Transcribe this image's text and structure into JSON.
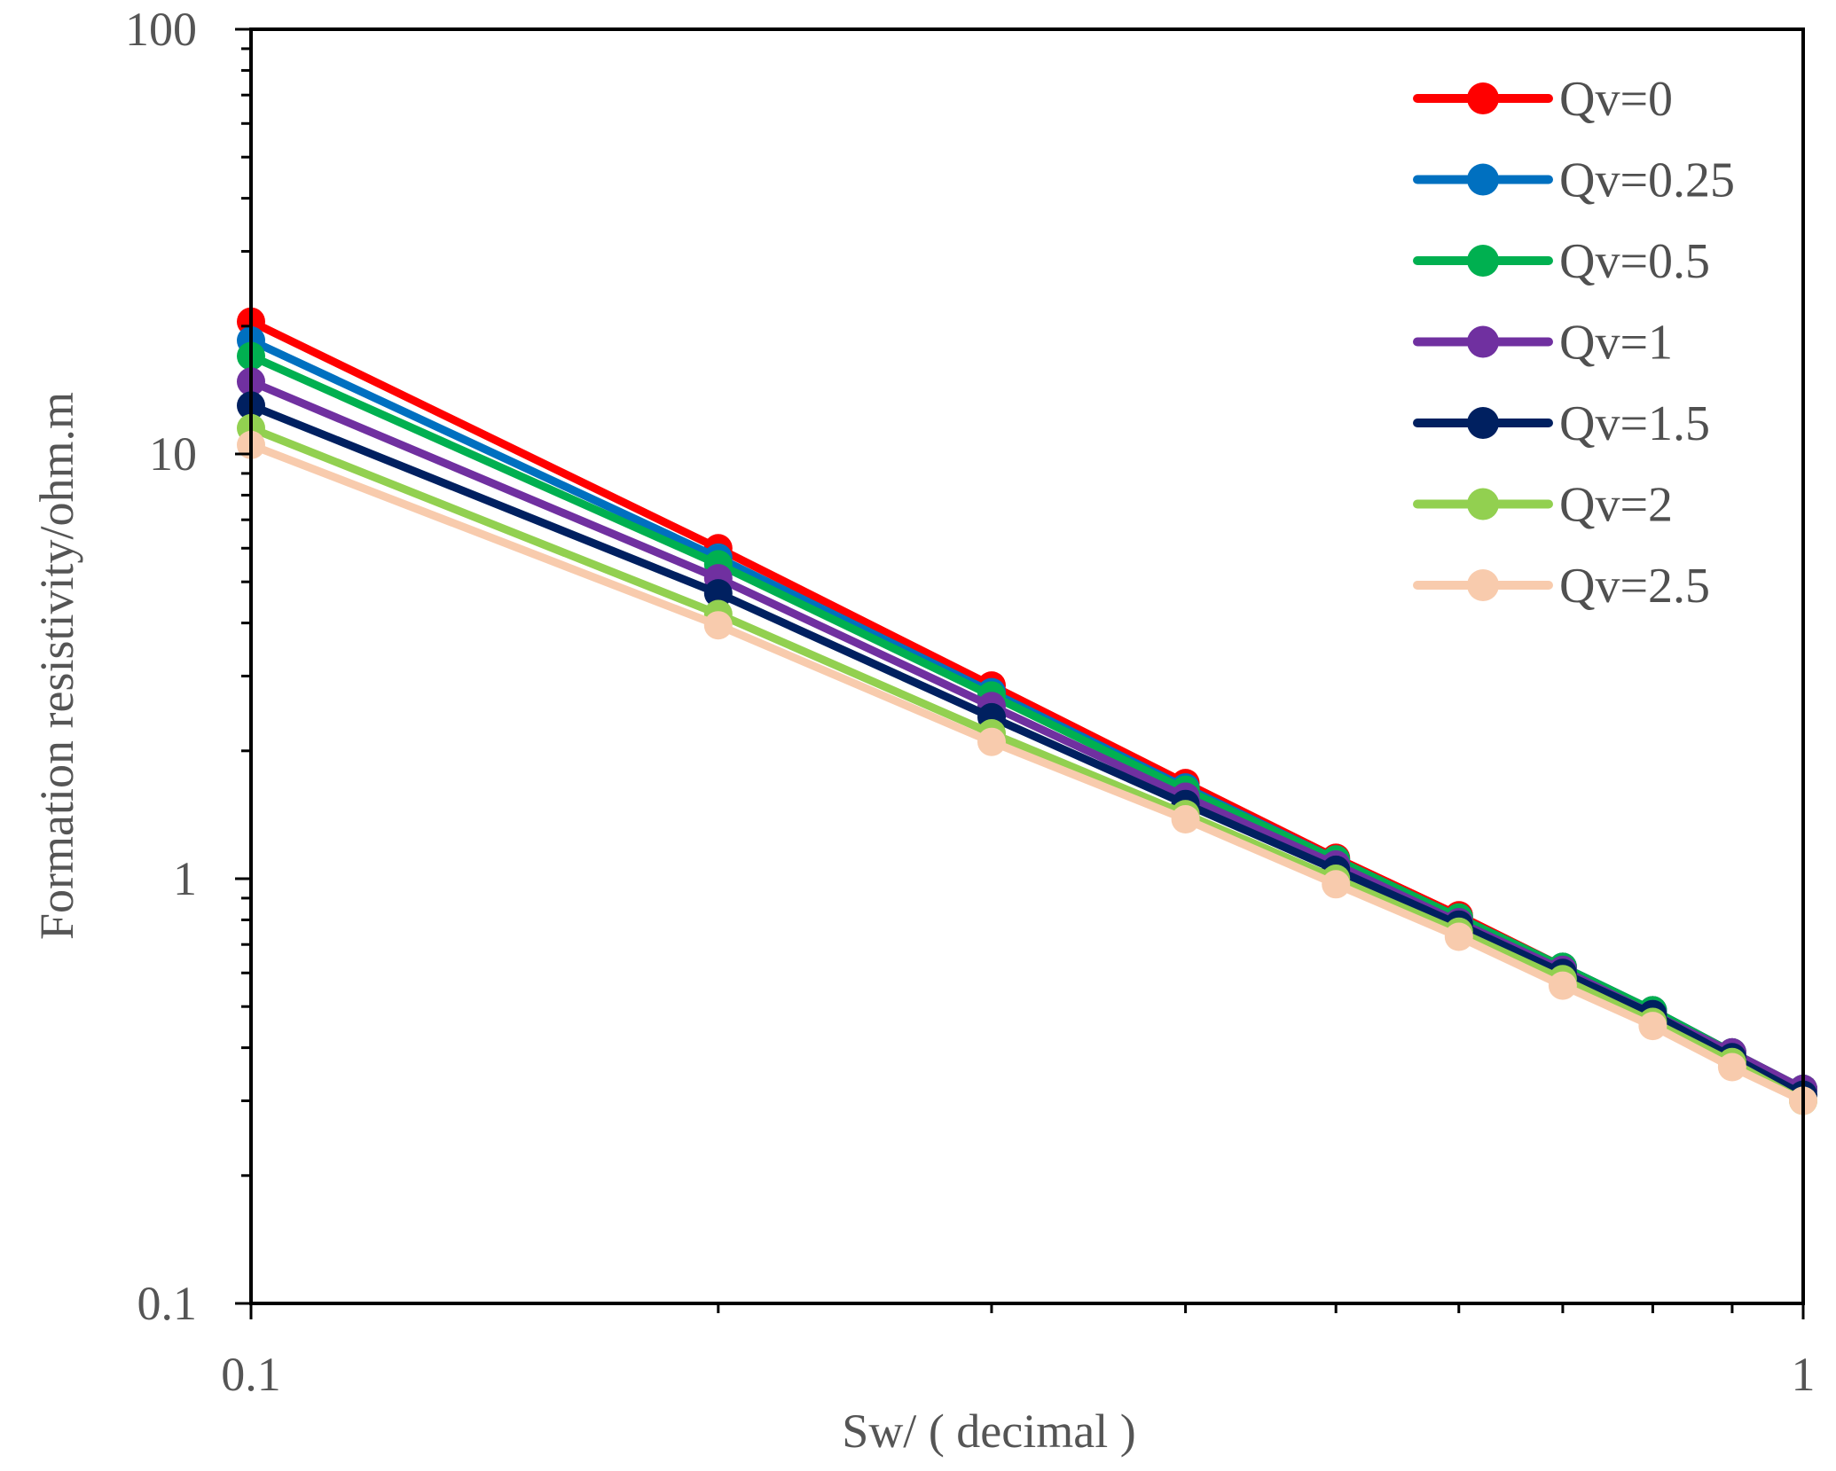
{
  "chart_data": {
    "type": "line",
    "title": "",
    "xlabel": "Sw/ ( decimal )",
    "ylabel": "Formation resistivity/ohm.m",
    "xscale": "log",
    "yscale": "log",
    "xlim": [
      0.1,
      1
    ],
    "ylim": [
      0.1,
      100
    ],
    "x_tick_labels": [
      "0.1",
      "1"
    ],
    "y_tick_labels": [
      "0.1",
      "1",
      "10",
      "100"
    ],
    "grid": false,
    "legend_position": "top-right",
    "x": [
      0.1,
      0.2,
      0.3,
      0.4,
      0.5,
      0.6,
      0.7,
      0.8,
      0.9,
      1.0
    ],
    "series": [
      {
        "name": "Qv=0",
        "color": "#ff0000",
        "values": [
          20.5,
          6.0,
          2.85,
          1.68,
          1.12,
          0.82,
          0.62,
          0.49,
          0.39,
          0.32
        ]
      },
      {
        "name": "Qv=0.25",
        "color": "#0070c0",
        "values": [
          18.5,
          5.7,
          2.75,
          1.64,
          1.11,
          0.81,
          0.62,
          0.49,
          0.39,
          0.32
        ]
      },
      {
        "name": "Qv=0.5",
        "color": "#00b050",
        "values": [
          17.0,
          5.5,
          2.7,
          1.62,
          1.11,
          0.81,
          0.62,
          0.49,
          0.39,
          0.32
        ]
      },
      {
        "name": "Qv=1",
        "color": "#7030a0",
        "values": [
          14.8,
          5.1,
          2.55,
          1.56,
          1.08,
          0.79,
          0.61,
          0.48,
          0.39,
          0.32
        ]
      },
      {
        "name": "Qv=1.5",
        "color": "#002060",
        "values": [
          13.0,
          4.7,
          2.4,
          1.5,
          1.05,
          0.78,
          0.6,
          0.48,
          0.38,
          0.31
        ]
      },
      {
        "name": "Qv=2",
        "color": "#92d050",
        "values": [
          11.5,
          4.2,
          2.2,
          1.42,
          1.0,
          0.75,
          0.58,
          0.46,
          0.37,
          0.3
        ]
      },
      {
        "name": "Qv=2.5",
        "color": "#f8cbad",
        "values": [
          10.5,
          3.95,
          2.1,
          1.38,
          0.97,
          0.73,
          0.56,
          0.45,
          0.36,
          0.3
        ]
      }
    ]
  }
}
